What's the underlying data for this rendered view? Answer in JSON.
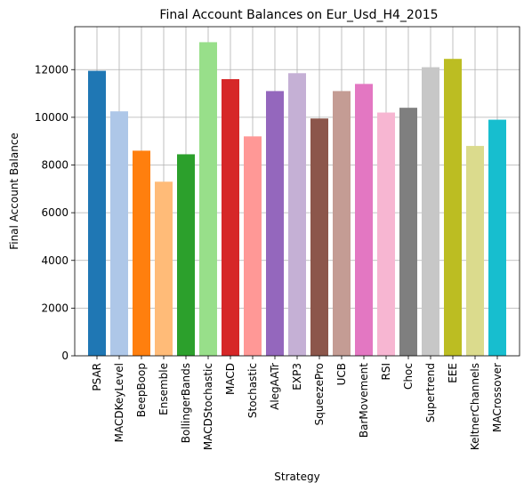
{
  "chart_data": {
    "type": "bar",
    "title": "Final Account Balances on Eur_Usd_H4_2015",
    "xlabel": "Strategy",
    "ylabel": "Final Account Balance",
    "ylim": [
      0,
      13800
    ],
    "yticks": [
      0,
      2000,
      4000,
      6000,
      8000,
      10000,
      12000
    ],
    "grid": true,
    "categories": [
      "PSAR",
      "MACDKeyLevel",
      "BeepBoop",
      "Ensemble",
      "BollingerBands",
      "MACDStochastic",
      "MACD",
      "Stochastic",
      "AlegAATr",
      "EXP3",
      "SqueezePro",
      "UCB",
      "BarMovement",
      "RSI",
      "Choc",
      "Supertrend",
      "EEE",
      "KeltnerChannels",
      "MACrossover"
    ],
    "values": [
      11950,
      10250,
      8600,
      7300,
      8450,
      13150,
      11600,
      9200,
      11100,
      11850,
      9950,
      11100,
      11400,
      10200,
      10400,
      12100,
      12450,
      8800,
      9900
    ],
    "colors": [
      "#1f77b4",
      "#aec7e8",
      "#ff7f0e",
      "#ffbb78",
      "#2ca02c",
      "#98df8a",
      "#d62728",
      "#ff9896",
      "#9467bd",
      "#c5b0d5",
      "#8c564b",
      "#c49c94",
      "#e377c2",
      "#f7b6d2",
      "#7f7f7f",
      "#c7c7c7",
      "#bcbd22",
      "#dbdb8d",
      "#17becf"
    ]
  }
}
